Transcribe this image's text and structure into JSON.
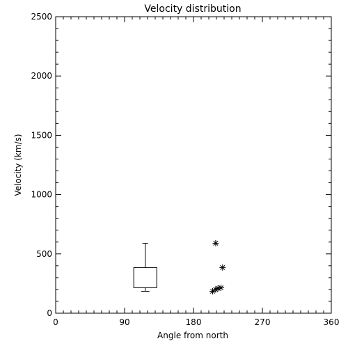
{
  "chart_data": {
    "type": "scatter",
    "title": "Velocity distribution",
    "xlabel": "Angle from north",
    "ylabel": "Velocity (km/s)",
    "xlim": [
      0,
      360
    ],
    "ylim": [
      0,
      2500
    ],
    "xticks": [
      0,
      90,
      180,
      270,
      360
    ],
    "yticks": [
      0,
      500,
      1000,
      1500,
      2000,
      2500
    ],
    "x_minor_step": 10,
    "y_minor_step": 100,
    "grid": false,
    "box": {
      "x_range": [
        102,
        132
      ],
      "q1": 215,
      "q3": 385,
      "lower_whisker": 185,
      "upper_whisker": 590
    },
    "points": [
      {
        "x": 209,
        "y": 590
      },
      {
        "x": 218,
        "y": 385
      },
      {
        "x": 205,
        "y": 185
      },
      {
        "x": 209,
        "y": 200
      },
      {
        "x": 212,
        "y": 210
      },
      {
        "x": 216,
        "y": 215
      }
    ],
    "marker": "asterisk",
    "color": "#000000"
  }
}
